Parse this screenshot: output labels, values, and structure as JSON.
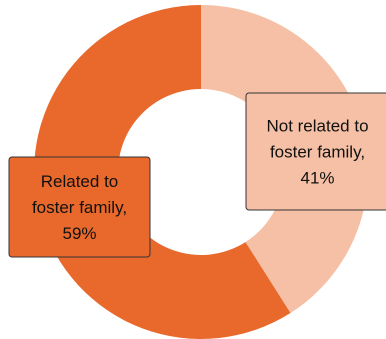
{
  "chart_data": {
    "type": "pie",
    "hole": true,
    "slices": [
      {
        "label": "Not related to foster family",
        "value": 41,
        "color": "#F5C0A5",
        "label_lines": [
          "Not related to",
          "foster family,",
          "41%"
        ]
      },
      {
        "label": "Related to foster family",
        "value": 59,
        "color": "#E8692B",
        "label_lines": [
          "Related to",
          "foster family,",
          "59%"
        ]
      }
    ]
  }
}
